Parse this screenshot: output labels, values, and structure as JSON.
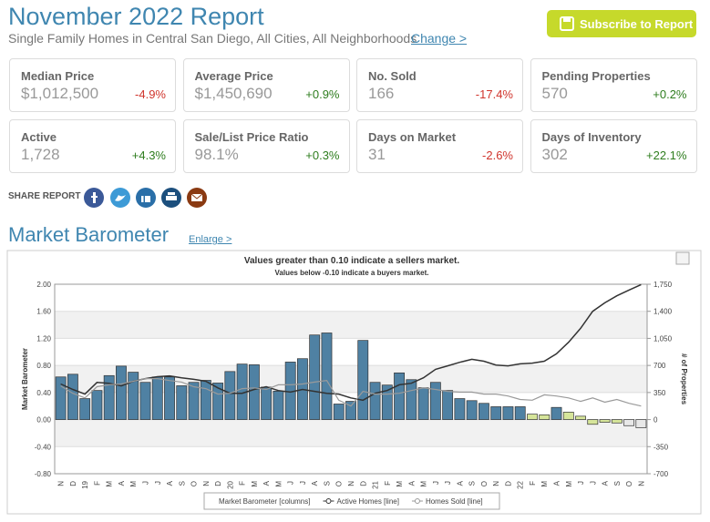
{
  "header": {
    "title": "November 2022 Report",
    "subtitle": "Single Family Homes in Central San Diego, All Cities, All Neighborhoods",
    "change_link": "Change >",
    "subscribe": "Subscribe to Report"
  },
  "stats": [
    {
      "label": "Median Price",
      "value": "$1,012,500",
      "change": "-4.9%",
      "change_color": "#d0342c"
    },
    {
      "label": "Average Price",
      "value": "$1,450,690",
      "change": "+0.9%",
      "change_color": "#2e7d1e"
    },
    {
      "label": "No. Sold",
      "value": "166",
      "change": "-17.4%",
      "change_color": "#d0342c"
    },
    {
      "label": "Pending Properties",
      "value": "570",
      "change": "+0.2%",
      "change_color": "#2e7d1e"
    },
    {
      "label": "Active",
      "value": "1,728",
      "change": "+4.3%",
      "change_color": "#2e7d1e"
    },
    {
      "label": "Sale/List Price Ratio",
      "value": "98.1%",
      "change": "+0.3%",
      "change_color": "#2e7d1e"
    },
    {
      "label": "Days on Market",
      "value": "31",
      "change": "-2.6%",
      "change_color": "#d0342c"
    },
    {
      "label": "Days of Inventory",
      "value": "302",
      "change": "+22.1%",
      "change_color": "#2e7d1e"
    }
  ],
  "share": {
    "label": "SHARE REPORT"
  },
  "section": {
    "title": "Market Barometer",
    "link": "Enlarge >"
  },
  "chart_data": {
    "type": "combo",
    "title": "Values greater than 0.10 indicate a sellers market.",
    "subtitle": "Values below -0.10 indicate a buyers market.",
    "ylabel": "Market Barometer",
    "y2label": "# of Properties",
    "categories": [
      "N",
      "D",
      "19",
      "F",
      "M",
      "A",
      "M",
      "J",
      "J",
      "A",
      "S",
      "O",
      "N",
      "D",
      "20",
      "F",
      "M",
      "A",
      "M",
      "J",
      "J",
      "A",
      "S",
      "O",
      "N",
      "D",
      "21",
      "F",
      "M",
      "A",
      "M",
      "J",
      "J",
      "A",
      "S",
      "O",
      "N",
      "D",
      "22",
      "F",
      "M",
      "A",
      "M",
      "J",
      "J",
      "A",
      "S",
      "O",
      "N"
    ],
    "ylim": [
      -0.8,
      2.0
    ],
    "yticks": [
      {
        "value": -0.8,
        "label": "-0.80"
      },
      {
        "value": -0.4,
        "label": "-0.40"
      },
      {
        "value": 0,
        "label": "0.00"
      },
      {
        "value": 0.4,
        "label": "0.40"
      },
      {
        "value": 0.8,
        "label": "0.80"
      },
      {
        "value": 1.2,
        "label": "1.20"
      },
      {
        "value": 1.6,
        "label": "1.60"
      },
      {
        "value": 2.0,
        "label": "2.00"
      }
    ],
    "y2lim": [
      -700,
      1750
    ],
    "y2ticks": [
      -700,
      -350,
      0,
      350,
      700,
      {
        "value": 1050,
        "label": "1,050"
      },
      {
        "value": 1400,
        "label": "1,400"
      },
      {
        "value": 1750,
        "label": "1,750"
      }
    ],
    "grid": true,
    "series": [
      {
        "name": "Market Barometer [columns]",
        "type": "bar",
        "values": [
          0.63,
          0.67,
          0.31,
          0.43,
          0.65,
          0.79,
          0.7,
          0.55,
          0.63,
          0.63,
          0.5,
          0.55,
          0.58,
          0.54,
          0.71,
          0.82,
          0.81,
          0.48,
          0.42,
          0.85,
          0.9,
          1.25,
          1.28,
          0.23,
          0.27,
          1.17,
          0.55,
          0.51,
          0.69,
          0.59,
          0.47,
          0.55,
          0.43,
          0.31,
          0.28,
          0.24,
          0.19,
          0.19,
          0.19,
          0.08,
          0.07,
          0.18,
          0.11,
          0.05,
          -0.07,
          -0.04,
          -0.05,
          -0.09,
          -0.12
        ],
        "colors": [
          "#4f81a3",
          "#4f81a3",
          "#4f81a3",
          "#4f81a3",
          "#4f81a3",
          "#4f81a3",
          "#4f81a3",
          "#4f81a3",
          "#4f81a3",
          "#4f81a3",
          "#4f81a3",
          "#4f81a3",
          "#4f81a3",
          "#4f81a3",
          "#4f81a3",
          "#4f81a3",
          "#4f81a3",
          "#4f81a3",
          "#4f81a3",
          "#4f81a3",
          "#4f81a3",
          "#4f81a3",
          "#4f81a3",
          "#4f81a3",
          "#4f81a3",
          "#4f81a3",
          "#4f81a3",
          "#4f81a3",
          "#4f81a3",
          "#4f81a3",
          "#4f81a3",
          "#4f81a3",
          "#4f81a3",
          "#4f81a3",
          "#4f81a3",
          "#4f81a3",
          "#4f81a3",
          "#4f81a3",
          "#4f81a3",
          "#d6e59a",
          "#d6e59a",
          "#4f81a3",
          "#d6e59a",
          "#d6e59a",
          "#d6e59a",
          "#d6e59a",
          "#d6e59a",
          "#e8e8e8",
          "#e8e8e8"
        ]
      },
      {
        "name": "Active Homes [line]",
        "type": "line",
        "axis": "y2",
        "color": "#333333",
        "values": [
          460,
          390,
          330,
          480,
          470,
          435,
          495,
          530,
          555,
          565,
          540,
          520,
          495,
          410,
          340,
          340,
          390,
          425,
          375,
          355,
          390,
          365,
          340,
          330,
          280,
          250,
          340,
          375,
          450,
          470,
          540,
          650,
          695,
          740,
          780,
          755,
          705,
          695,
          720,
          730,
          755,
          850,
          1000,
          1180,
          1400,
          1510,
          1600,
          1675,
          1745
        ]
      },
      {
        "name": "Homes Sold [line]",
        "type": "line",
        "axis": "y2",
        "color": "#9a9a9a",
        "values": [
          435,
          340,
          280,
          425,
          450,
          460,
          495,
          530,
          530,
          505,
          485,
          425,
          400,
          330,
          340,
          400,
          410,
          390,
          450,
          450,
          460,
          485,
          505,
          250,
          175,
          365,
          330,
          330,
          340,
          375,
          410,
          390,
          365,
          355,
          355,
          330,
          330,
          305,
          260,
          250,
          320,
          305,
          280,
          235,
          280,
          225,
          260,
          210,
          175
        ]
      }
    ]
  }
}
